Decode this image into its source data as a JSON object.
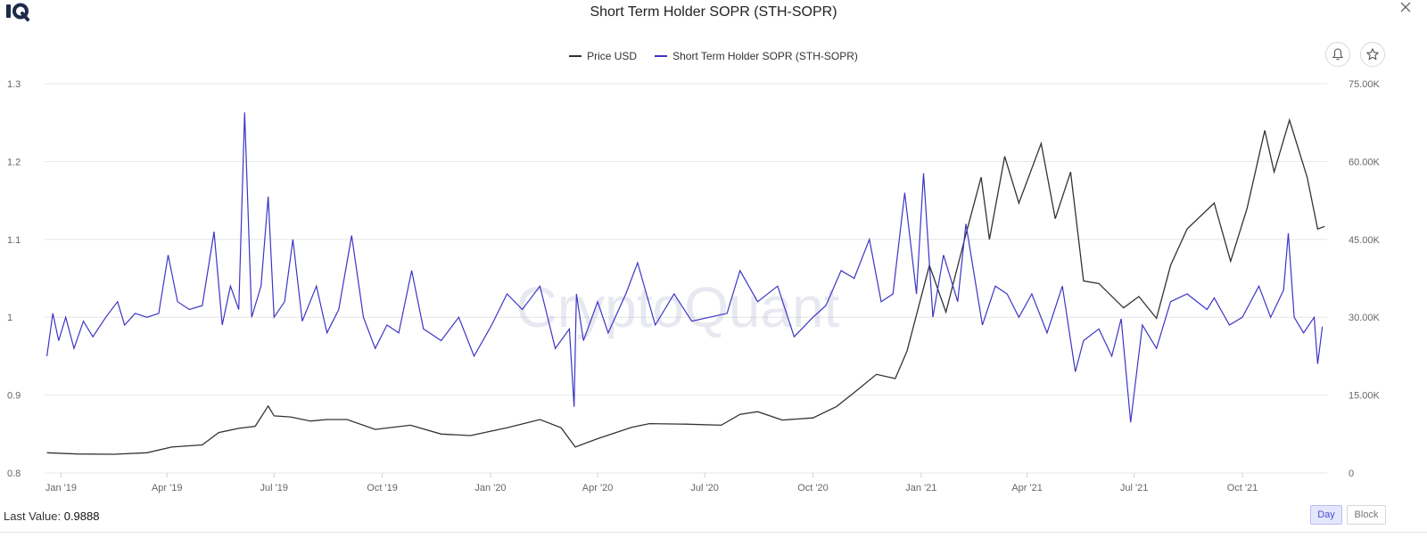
{
  "header": {
    "title": "Short Term Holder SOPR (STH-SOPR)"
  },
  "footer": {
    "last_value_label": "Last Value:",
    "last_value": "0.9888",
    "day_label": "Day",
    "block_label": "Block"
  },
  "watermark": "CryptoQuant",
  "colors": {
    "price": "#333333",
    "sopr": "#3d35c4",
    "grid": "#e6e6e6",
    "accent": "#4a4fd0"
  },
  "chart_data": {
    "type": "line",
    "x_ticks": [
      "Jan '19",
      "Apr '19",
      "Jul '19",
      "Oct '19",
      "Jan '20",
      "Apr '20",
      "Jul '20",
      "Oct '20",
      "Jan '21",
      "Apr '21",
      "Jul '21",
      "Oct '21"
    ],
    "y_left": {
      "ticks": [
        "0.8",
        "0.9",
        "1",
        "1.1",
        "1.2",
        "1.3"
      ],
      "range": [
        0.8,
        1.3
      ]
    },
    "y_right": {
      "ticks": [
        "0",
        "15.00K",
        "30.00K",
        "45.00K",
        "60.00K",
        "75.00K"
      ],
      "range": [
        0,
        75000
      ]
    },
    "grid": true,
    "legend_position": "top-center",
    "series": [
      {
        "name": "Price USD",
        "axis": "right",
        "points": [
          [
            "2018-12-20",
            3900
          ],
          [
            "2019-01-15",
            3650
          ],
          [
            "2019-02-15",
            3600
          ],
          [
            "2019-03-15",
            3900
          ],
          [
            "2019-04-05",
            5000
          ],
          [
            "2019-05-01",
            5400
          ],
          [
            "2019-05-15",
            7800
          ],
          [
            "2019-06-01",
            8600
          ],
          [
            "2019-06-15",
            9000
          ],
          [
            "2019-06-26",
            12900
          ],
          [
            "2019-07-01",
            11000
          ],
          [
            "2019-07-15",
            10800
          ],
          [
            "2019-08-01",
            10000
          ],
          [
            "2019-08-15",
            10300
          ],
          [
            "2019-09-01",
            10300
          ],
          [
            "2019-09-25",
            8400
          ],
          [
            "2019-10-25",
            9200
          ],
          [
            "2019-11-20",
            7500
          ],
          [
            "2019-12-15",
            7200
          ],
          [
            "2020-01-15",
            8700
          ],
          [
            "2020-02-12",
            10300
          ],
          [
            "2020-03-01",
            8700
          ],
          [
            "2020-03-13",
            5000
          ],
          [
            "2020-04-01",
            6600
          ],
          [
            "2020-04-30",
            8800
          ],
          [
            "2020-05-15",
            9500
          ],
          [
            "2020-06-15",
            9400
          ],
          [
            "2020-07-15",
            9200
          ],
          [
            "2020-07-31",
            11300
          ],
          [
            "2020-08-15",
            11800
          ],
          [
            "2020-09-05",
            10200
          ],
          [
            "2020-10-01",
            10600
          ],
          [
            "2020-10-21",
            12800
          ],
          [
            "2020-11-05",
            15500
          ],
          [
            "2020-11-24",
            19000
          ],
          [
            "2020-12-10",
            18200
          ],
          [
            "2020-12-20",
            23500
          ],
          [
            "2021-01-08",
            40000
          ],
          [
            "2021-01-22",
            31000
          ],
          [
            "2021-02-08",
            46000
          ],
          [
            "2021-02-21",
            57000
          ],
          [
            "2021-02-28",
            45000
          ],
          [
            "2021-03-13",
            61000
          ],
          [
            "2021-03-25",
            52000
          ],
          [
            "2021-04-13",
            63500
          ],
          [
            "2021-04-25",
            49000
          ],
          [
            "2021-05-08",
            58000
          ],
          [
            "2021-05-19",
            37000
          ],
          [
            "2021-06-01",
            36500
          ],
          [
            "2021-06-22",
            31800
          ],
          [
            "2021-07-05",
            34000
          ],
          [
            "2021-07-20",
            29800
          ],
          [
            "2021-08-01",
            40000
          ],
          [
            "2021-08-15",
            47000
          ],
          [
            "2021-09-07",
            52000
          ],
          [
            "2021-09-21",
            40800
          ],
          [
            "2021-10-05",
            51000
          ],
          [
            "2021-10-20",
            66000
          ],
          [
            "2021-10-28",
            58000
          ],
          [
            "2021-11-10",
            68000
          ],
          [
            "2021-11-25",
            57000
          ],
          [
            "2021-12-04",
            47000
          ],
          [
            "2021-12-10",
            47500
          ]
        ]
      },
      {
        "name": "Short Term Holder SOPR (STH-SOPR)",
        "axis": "left",
        "points": [
          [
            "2018-12-20",
            0.95
          ],
          [
            "2018-12-25",
            1.005
          ],
          [
            "2018-12-30",
            0.97
          ],
          [
            "2019-01-05",
            1.0
          ],
          [
            "2019-01-12",
            0.96
          ],
          [
            "2019-01-20",
            0.995
          ],
          [
            "2019-01-28",
            0.975
          ],
          [
            "2019-02-08",
            1.0
          ],
          [
            "2019-02-18",
            1.02
          ],
          [
            "2019-02-24",
            0.99
          ],
          [
            "2019-03-05",
            1.005
          ],
          [
            "2019-03-15",
            1.0
          ],
          [
            "2019-03-25",
            1.005
          ],
          [
            "2019-04-02",
            1.08
          ],
          [
            "2019-04-10",
            1.02
          ],
          [
            "2019-04-20",
            1.01
          ],
          [
            "2019-05-01",
            1.015
          ],
          [
            "2019-05-11",
            1.11
          ],
          [
            "2019-05-18",
            0.99
          ],
          [
            "2019-05-25",
            1.04
          ],
          [
            "2019-06-01",
            1.01
          ],
          [
            "2019-06-06",
            1.263
          ],
          [
            "2019-06-12",
            1.0
          ],
          [
            "2019-06-20",
            1.04
          ],
          [
            "2019-06-26",
            1.155
          ],
          [
            "2019-07-01",
            1.0
          ],
          [
            "2019-07-10",
            1.02
          ],
          [
            "2019-07-17",
            1.1
          ],
          [
            "2019-07-25",
            0.995
          ],
          [
            "2019-08-06",
            1.04
          ],
          [
            "2019-08-15",
            0.98
          ],
          [
            "2019-08-25",
            1.01
          ],
          [
            "2019-09-05",
            1.105
          ],
          [
            "2019-09-15",
            1.0
          ],
          [
            "2019-09-25",
            0.96
          ],
          [
            "2019-10-05",
            0.99
          ],
          [
            "2019-10-15",
            0.98
          ],
          [
            "2019-10-26",
            1.06
          ],
          [
            "2019-11-05",
            0.985
          ],
          [
            "2019-11-20",
            0.97
          ],
          [
            "2019-12-05",
            1.0
          ],
          [
            "2019-12-18",
            0.95
          ],
          [
            "2020-01-02",
            0.99
          ],
          [
            "2020-01-15",
            1.03
          ],
          [
            "2020-01-28",
            1.01
          ],
          [
            "2020-02-12",
            1.04
          ],
          [
            "2020-02-25",
            0.96
          ],
          [
            "2020-03-08",
            0.985
          ],
          [
            "2020-03-12",
            0.885
          ],
          [
            "2020-03-14",
            1.03
          ],
          [
            "2020-03-20",
            0.97
          ],
          [
            "2020-04-01",
            1.02
          ],
          [
            "2020-04-10",
            0.98
          ],
          [
            "2020-04-25",
            1.03
          ],
          [
            "2020-05-05",
            1.07
          ],
          [
            "2020-05-20",
            0.99
          ],
          [
            "2020-06-05",
            1.03
          ],
          [
            "2020-06-20",
            0.995
          ],
          [
            "2020-07-05",
            1.0
          ],
          [
            "2020-07-20",
            1.005
          ],
          [
            "2020-07-31",
            1.06
          ],
          [
            "2020-08-15",
            1.02
          ],
          [
            "2020-09-01",
            1.04
          ],
          [
            "2020-09-15",
            0.975
          ],
          [
            "2020-10-01",
            1.0
          ],
          [
            "2020-10-12",
            1.015
          ],
          [
            "2020-10-25",
            1.06
          ],
          [
            "2020-11-05",
            1.05
          ],
          [
            "2020-11-18",
            1.1
          ],
          [
            "2020-11-28",
            1.02
          ],
          [
            "2020-12-08",
            1.03
          ],
          [
            "2020-12-18",
            1.16
          ],
          [
            "2020-12-28",
            1.03
          ],
          [
            "2021-01-03",
            1.185
          ],
          [
            "2021-01-11",
            1.0
          ],
          [
            "2021-01-20",
            1.08
          ],
          [
            "2021-02-01",
            1.02
          ],
          [
            "2021-02-08",
            1.12
          ],
          [
            "2021-02-22",
            0.99
          ],
          [
            "2021-03-05",
            1.04
          ],
          [
            "2021-03-15",
            1.03
          ],
          [
            "2021-03-25",
            1.0
          ],
          [
            "2021-04-05",
            1.03
          ],
          [
            "2021-04-18",
            0.98
          ],
          [
            "2021-05-01",
            1.04
          ],
          [
            "2021-05-12",
            0.93
          ],
          [
            "2021-05-19",
            0.97
          ],
          [
            "2021-06-01",
            0.985
          ],
          [
            "2021-06-12",
            0.95
          ],
          [
            "2021-06-20",
            0.998
          ],
          [
            "2021-06-28",
            0.865
          ],
          [
            "2021-07-08",
            0.99
          ],
          [
            "2021-07-20",
            0.96
          ],
          [
            "2021-08-01",
            1.02
          ],
          [
            "2021-08-15",
            1.03
          ],
          [
            "2021-09-01",
            1.01
          ],
          [
            "2021-09-07",
            1.025
          ],
          [
            "2021-09-20",
            0.99
          ],
          [
            "2021-10-01",
            1.0
          ],
          [
            "2021-10-15",
            1.04
          ],
          [
            "2021-10-25",
            1.0
          ],
          [
            "2021-11-05",
            1.035
          ],
          [
            "2021-11-09",
            1.108
          ],
          [
            "2021-11-14",
            1.0
          ],
          [
            "2021-11-22",
            0.98
          ],
          [
            "2021-12-01",
            1.0
          ],
          [
            "2021-12-04",
            0.94
          ],
          [
            "2021-12-08",
            0.988
          ]
        ]
      }
    ]
  }
}
